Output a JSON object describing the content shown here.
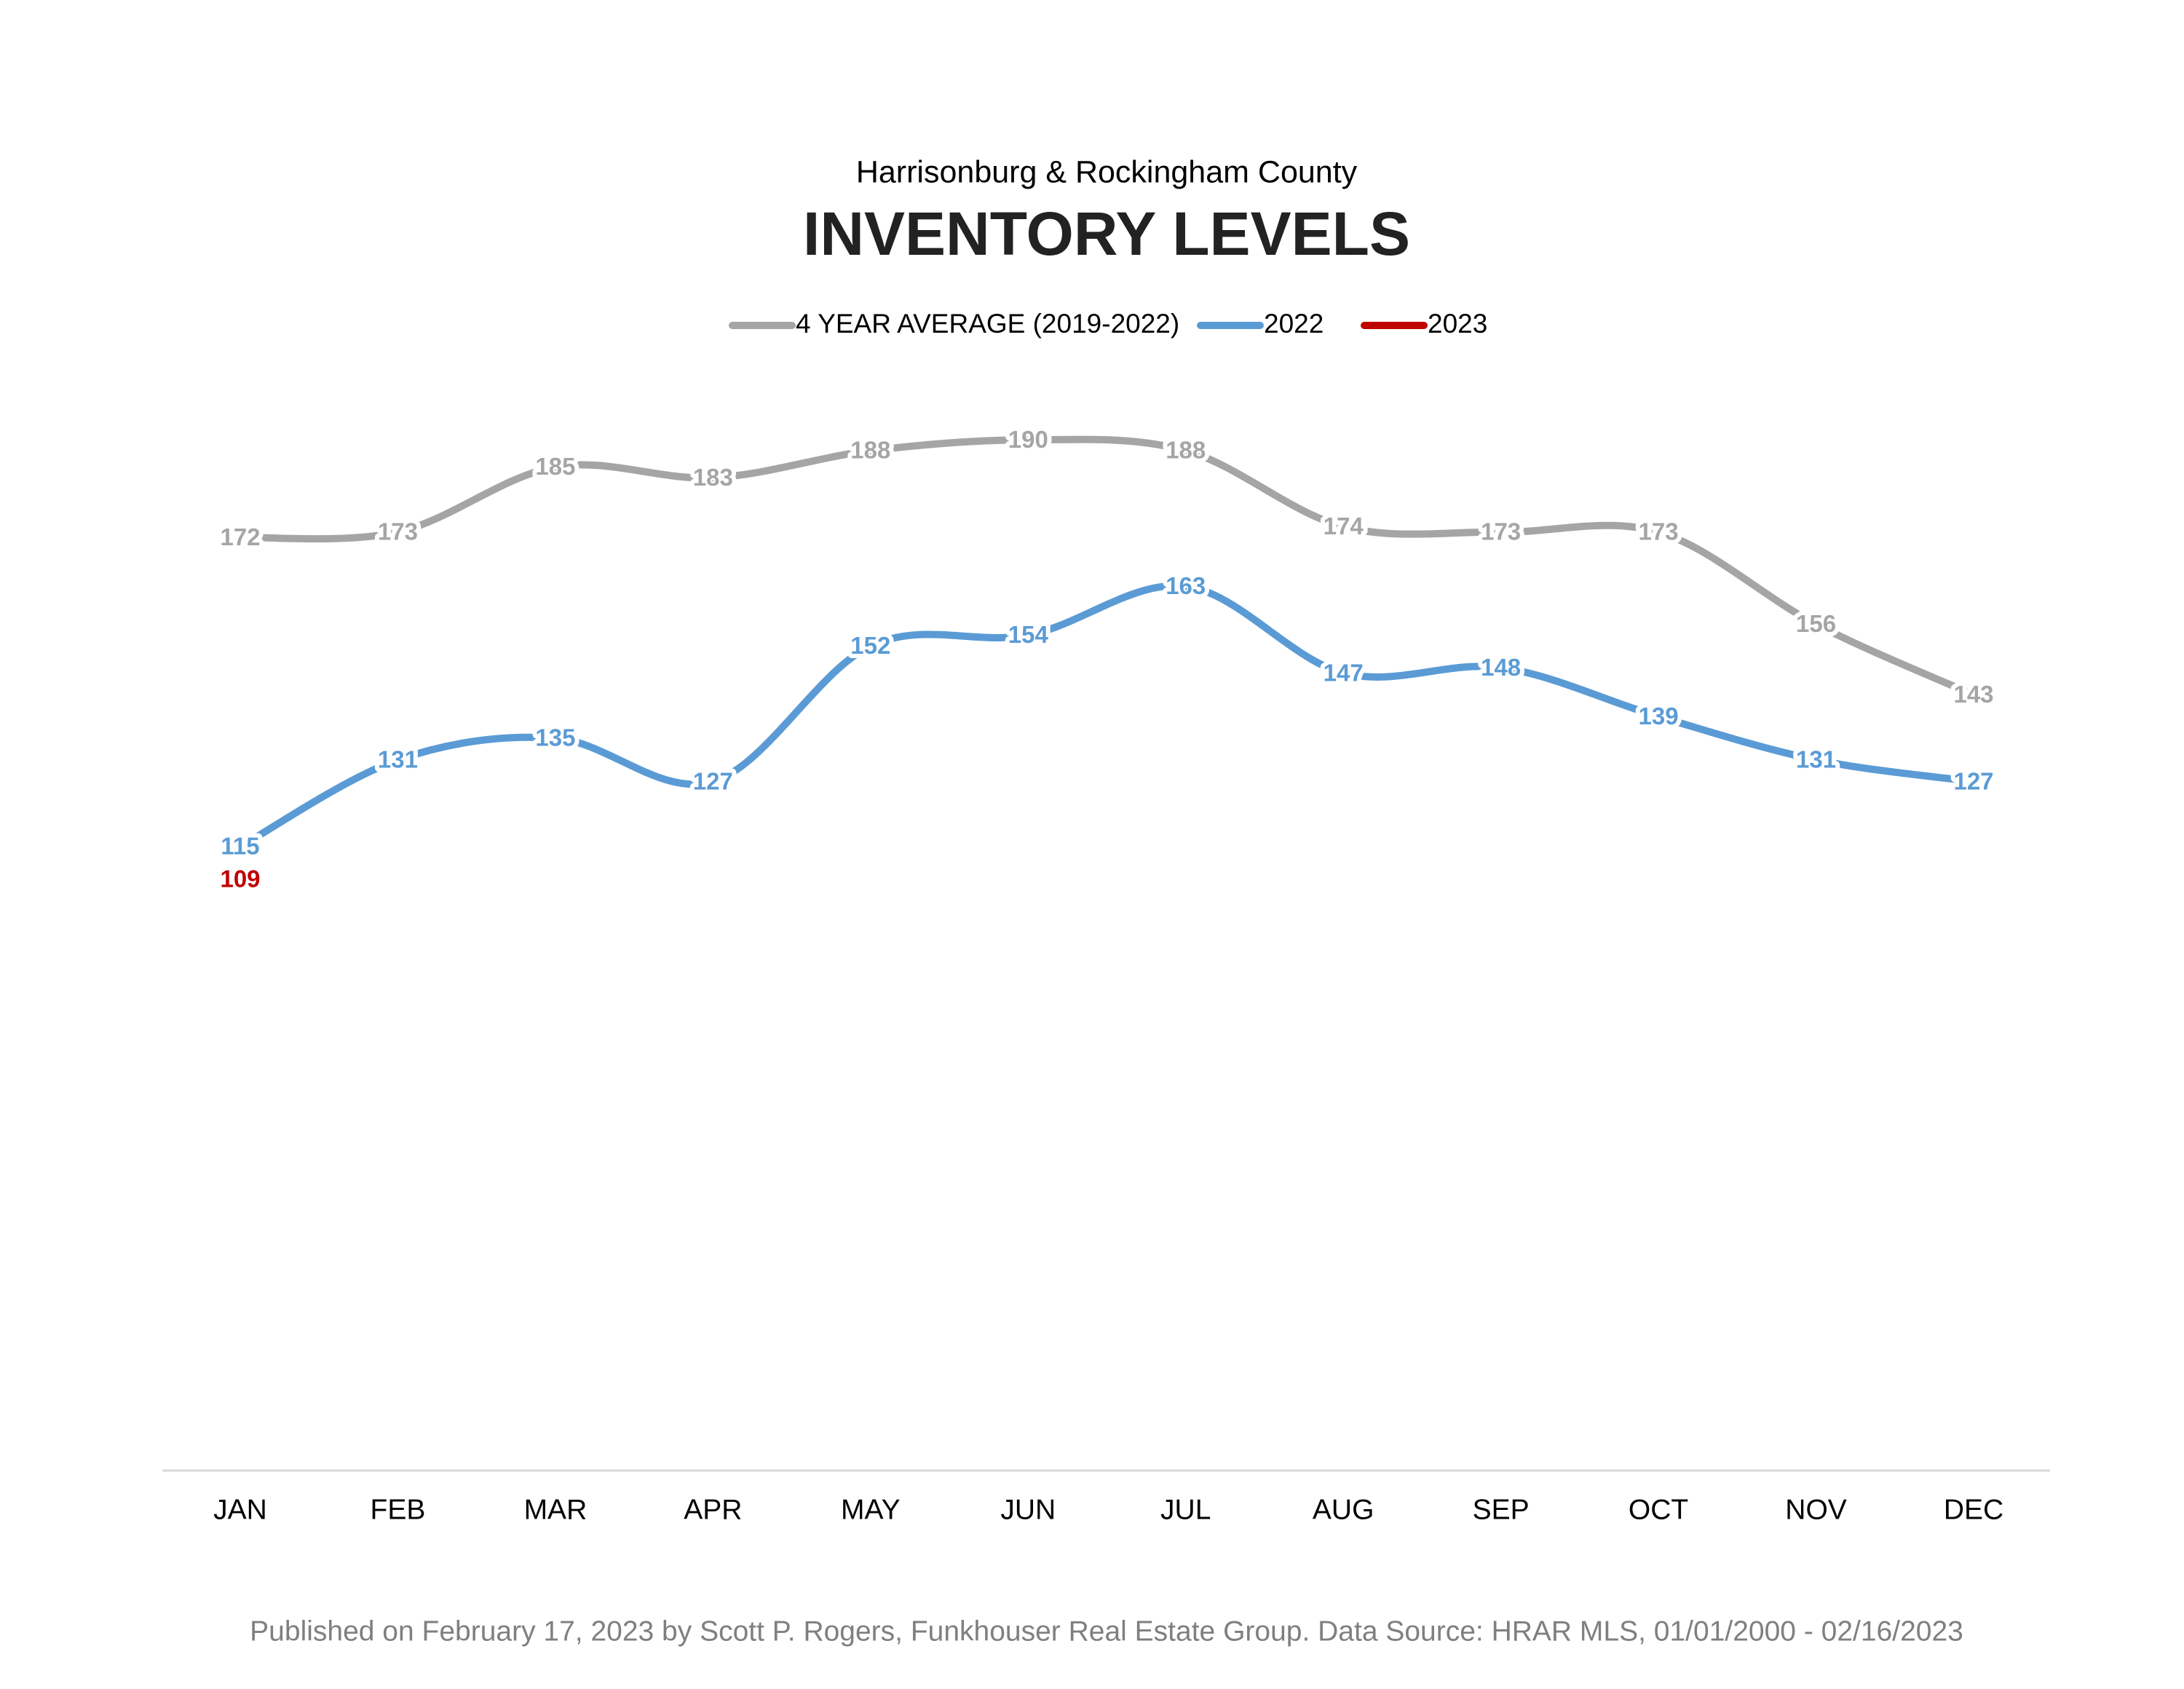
{
  "chart_data": {
    "type": "line",
    "subtitle": "Harrisonburg & Rockingham County",
    "title": "INVENTORY LEVELS",
    "footer": "Published on February 17, 2023 by Scott P. Rogers, Funkhouser Real Estate Group. Data Source: HRAR MLS, 01/01/2000 - 02/16/2023",
    "categories": [
      "JAN",
      "FEB",
      "MAR",
      "APR",
      "MAY",
      "JUN",
      "JUL",
      "AUG",
      "SEP",
      "OCT",
      "NOV",
      "DEC"
    ],
    "series": [
      {
        "name": "4 YEAR AVERAGE (2019-2022)",
        "color": "#a5a5a5",
        "values": [
          172,
          173,
          185,
          183,
          188,
          190,
          188,
          174,
          173,
          173,
          156,
          143
        ]
      },
      {
        "name": "2022",
        "color": "#5b9bd5",
        "values": [
          115,
          131,
          135,
          127,
          152,
          154,
          163,
          147,
          148,
          139,
          131,
          127
        ]
      },
      {
        "name": "2023",
        "color": "#c00000",
        "values": [
          109,
          null,
          null,
          null,
          null,
          null,
          null,
          null,
          null,
          null,
          null,
          null
        ]
      }
    ],
    "ylim": [
      0,
      250
    ],
    "legend": "top",
    "smooth": true
  }
}
